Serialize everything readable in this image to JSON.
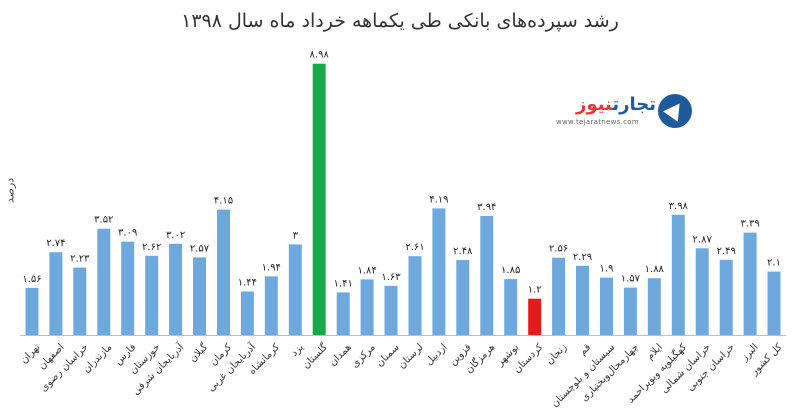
{
  "chart_data": {
    "type": "bar",
    "title": "رشد سپرده‌های بانکی طی یکماهه خرداد ماه سال ۱۳۹۸",
    "ylabel": "درصد",
    "xlabel": "",
    "ylim": [
      0,
      9.5
    ],
    "grid": false,
    "categories": [
      "تهران",
      "اصفهان",
      "خراسان رضوی",
      "مازندران",
      "فارس",
      "خوزستان",
      "آذربایجان شرقی",
      "گیلان",
      "کرمان",
      "آذربایجان غربی",
      "کرمانشاه",
      "یزد",
      "گلستان",
      "همدان",
      "مرکزی",
      "سمنان",
      "لرستان",
      "اردبیل",
      "قزوین",
      "هرمزگان",
      "بوشهر",
      "کردستان",
      "زنجان",
      "قم",
      "سیستان و بلوچستان",
      "چهارمحال‌وبختیاری",
      "ایلام",
      "کهگیلویه وبویراحمد",
      "خراسان شمالی",
      "خراسان جنوبی",
      "البرز",
      "کل کشور"
    ],
    "values": [
      1.56,
      2.74,
      2.23,
      3.52,
      3.09,
      2.62,
      3.02,
      2.57,
      4.15,
      1.44,
      1.94,
      3,
      8.98,
      1.41,
      1.84,
      1.63,
      2.61,
      4.19,
      2.48,
      3.94,
      1.85,
      1.2,
      2.56,
      2.29,
      1.9,
      1.57,
      1.88,
      3.98,
      2.87,
      2.49,
      3.39,
      2.1
    ],
    "value_labels": [
      "۱.۵۶",
      "۲.۷۴",
      "۲.۲۳",
      "۳.۵۲",
      "۳.۰۹",
      "۲.۶۲",
      "۳.۰۲",
      "۲.۵۷",
      "۴.۱۵",
      "۱.۴۴",
      "۱.۹۴",
      "۳",
      "۸.۹۸",
      "۱.۴۱",
      "۱.۸۴",
      "۱.۶۳",
      "۲.۶۱",
      "۴.۱۹",
      "۲.۴۸",
      "۳.۹۴",
      "۱.۸۵",
      "۱.۲",
      "۲.۵۶",
      "۲.۲۹",
      "۱.۹",
      "۱.۵۷",
      "۱.۸۸",
      "۳.۹۸",
      "۲.۸۷",
      "۲.۴۹",
      "۳.۳۹",
      "۲.۱"
    ],
    "colors": {
      "default": "#6fa8dc",
      "max": "#1aa84a",
      "min": "#e31a1c"
    },
    "highlight": {
      "max_index": 12,
      "min_index": 21
    }
  },
  "logo": {
    "text_a": "تجارت",
    "text_b": "نیوز",
    "url": "www.tejaratnews.com"
  }
}
